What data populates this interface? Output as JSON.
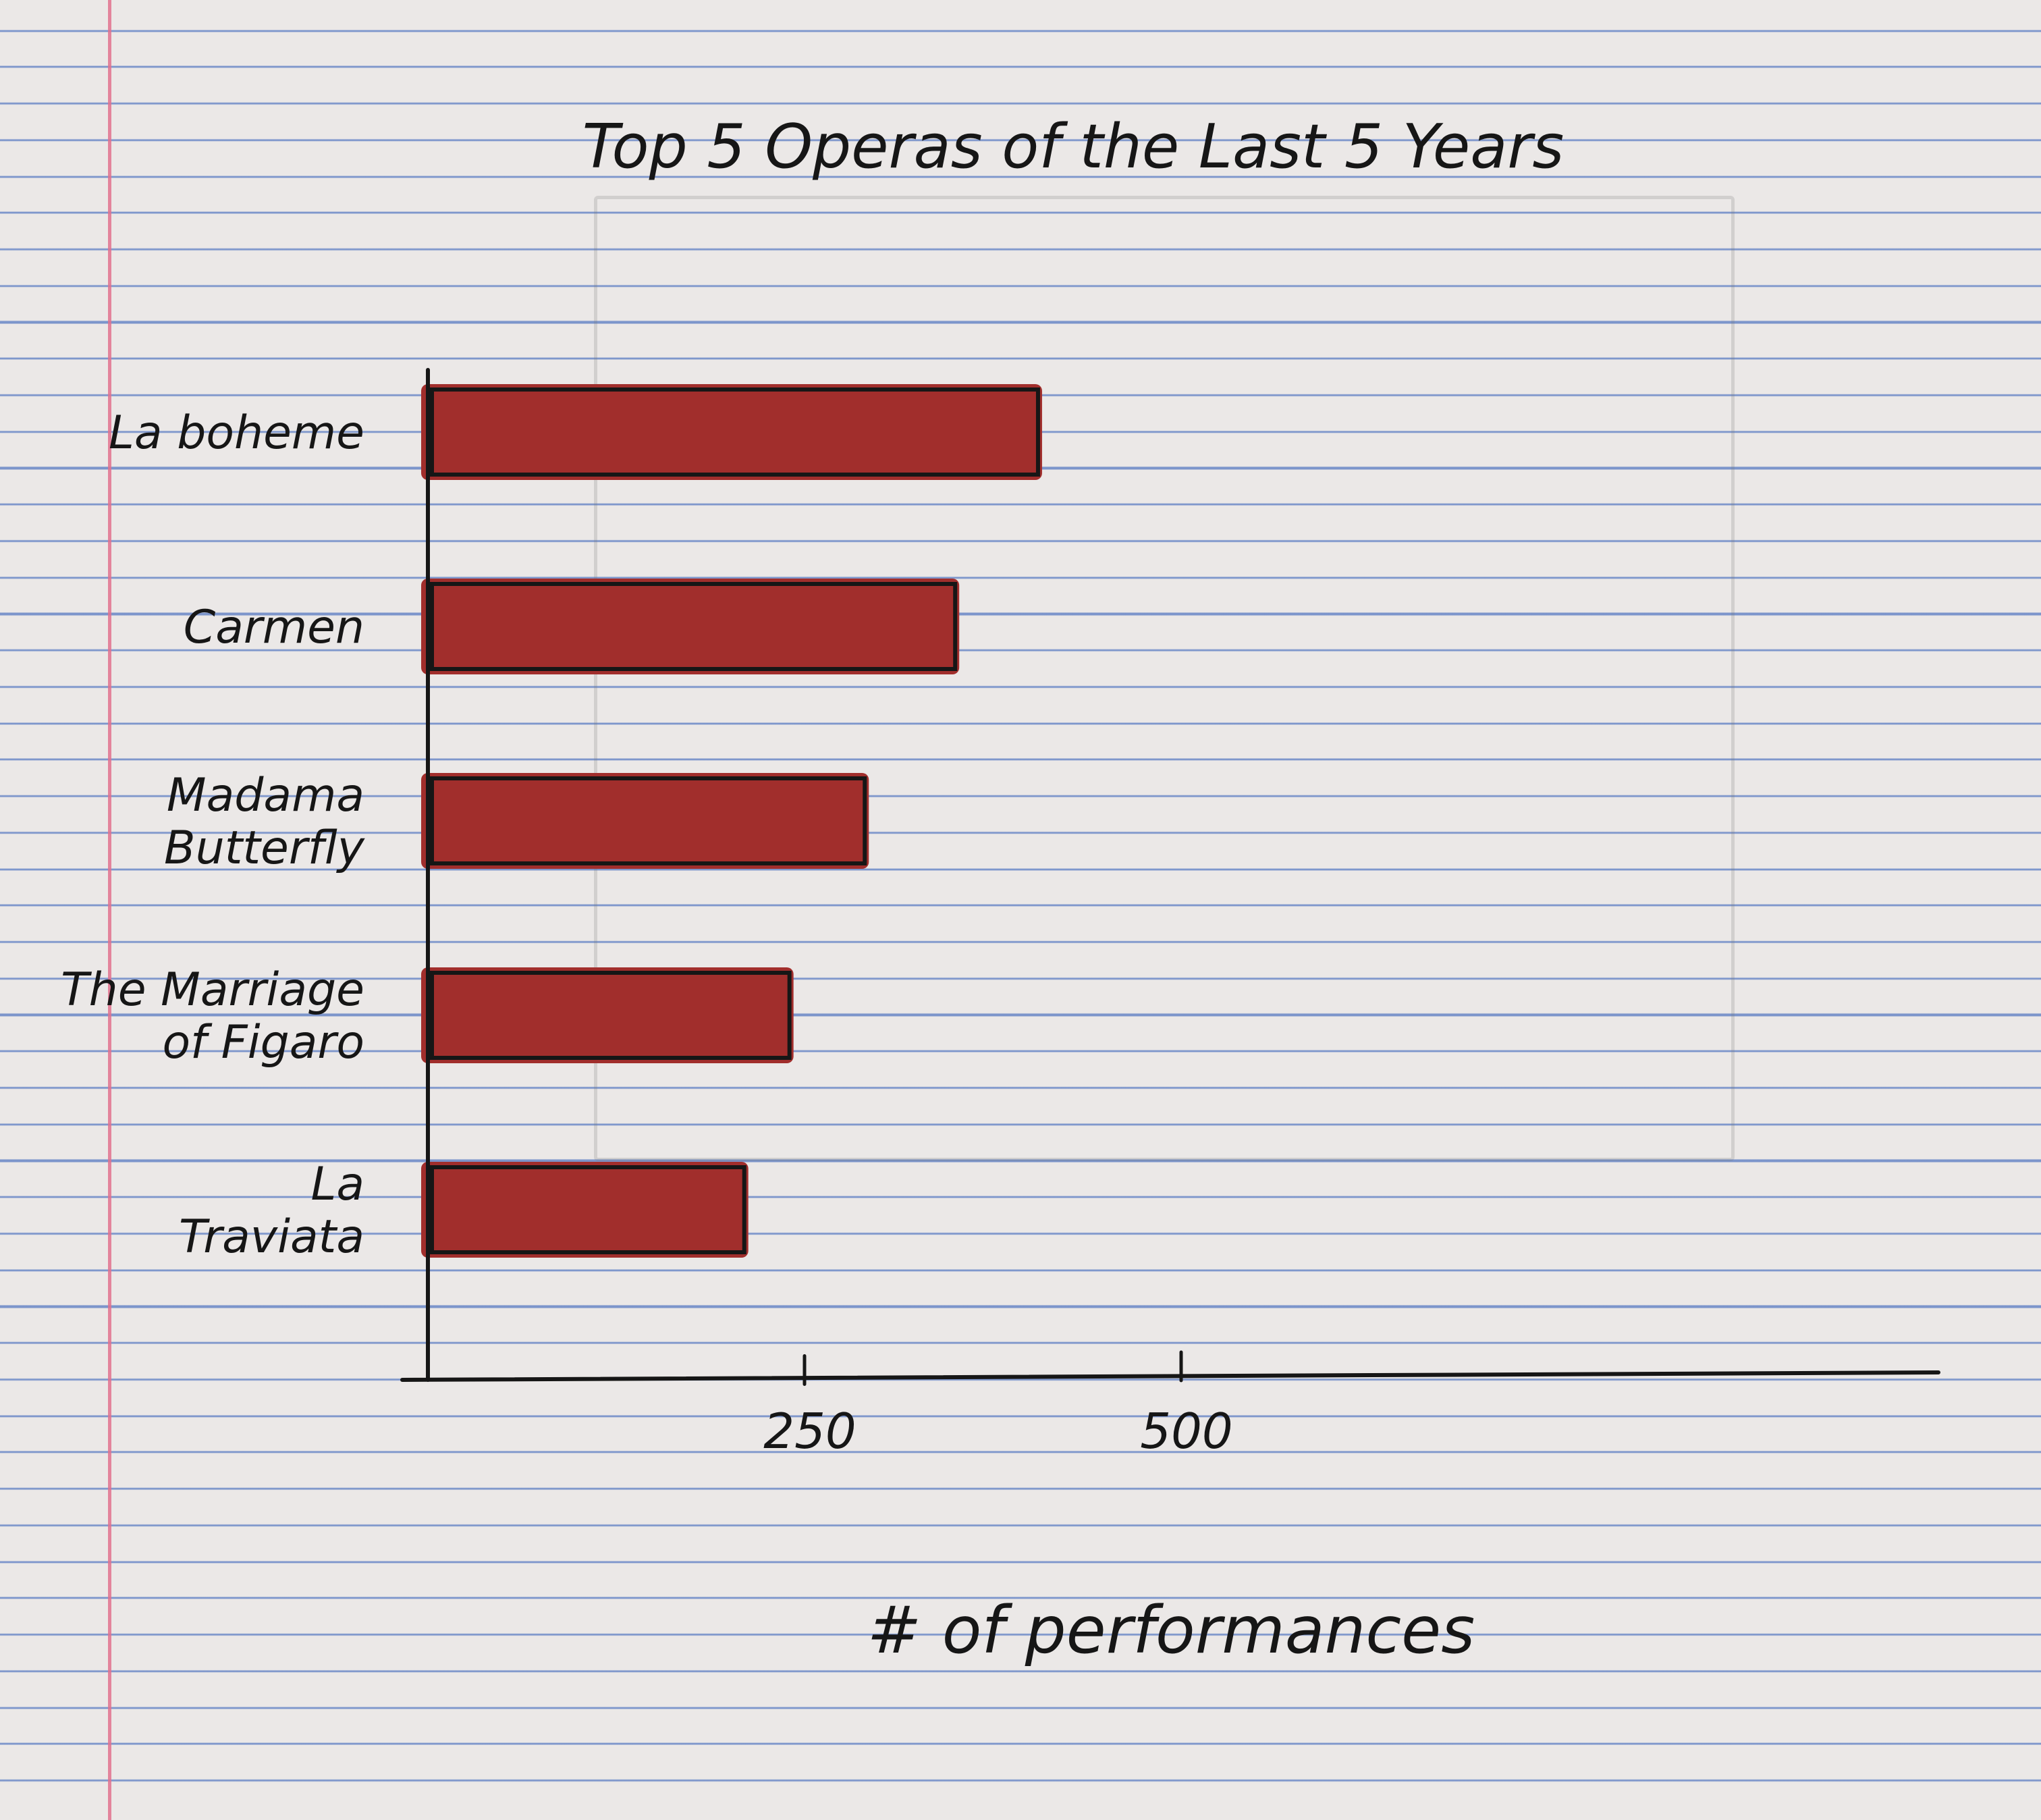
{
  "chart_data": {
    "type": "bar",
    "orientation": "horizontal",
    "title": "Top 5 Operas of the Last 5 Years",
    "categories": [
      "La boheme",
      "Carmen",
      "Madama Butterfly",
      "The Marriage of Figaro",
      "La Traviata"
    ],
    "category_lines": [
      [
        "La boheme"
      ],
      [
        "Carmen"
      ],
      [
        "Madama",
        "Butterfly"
      ],
      [
        "The Marriage",
        "of Figaro"
      ],
      [
        "La",
        "Traviata"
      ]
    ],
    "values": [
      405,
      350,
      290,
      240,
      210
    ],
    "xlabel": "# of performances",
    "ylabel": "",
    "xlim": [
      0,
      550
    ],
    "xticks": [
      250,
      500
    ],
    "xtick_labels": [
      "250",
      "500"
    ],
    "grid": false,
    "bar_color": "#a12e2c",
    "outline_color": "#161616"
  }
}
